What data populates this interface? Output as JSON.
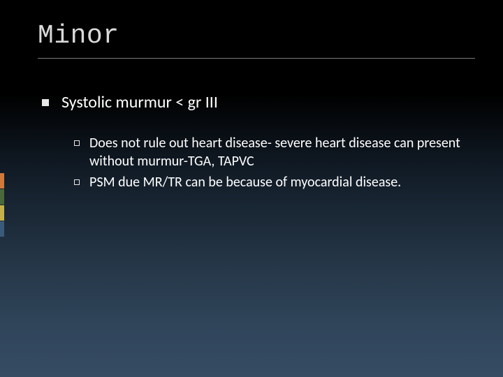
{
  "slide": {
    "title": "Minor",
    "title_color": "#d9d9d9",
    "title_font": "Consolas",
    "title_fontsize": 38,
    "underline_color": "#7a7a7a",
    "background_gradient": [
      "#000000",
      "#111b26",
      "#253647",
      "#364c63"
    ],
    "text_color": "#ffffff",
    "bullets": {
      "level1": [
        {
          "text": "Systolic murmur < gr III"
        }
      ],
      "level2": [
        {
          "text": "Does not rule out heart disease- severe heart disease can present without murmur-TGA, TAPVC"
        },
        {
          "text": "PSM due MR/TR can be because of myocardial disease."
        }
      ]
    },
    "level1_fontsize": 24,
    "level2_fontsize": 20,
    "bullet_fill_color": "#e8e8e8",
    "accent_bars": [
      "#d07a3a",
      "#4a6a3a",
      "#c4b14a",
      "#3a5a7a"
    ]
  }
}
